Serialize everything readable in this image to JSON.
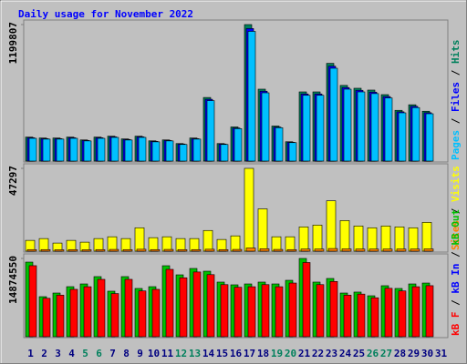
{
  "chart_data": {
    "type": "bar",
    "title": "Daily usage for November 2022",
    "categories": [
      "1",
      "2",
      "3",
      "4",
      "5",
      "6",
      "7",
      "8",
      "9",
      "10",
      "11",
      "12",
      "13",
      "14",
      "15",
      "16",
      "17",
      "18",
      "19",
      "20",
      "21",
      "22",
      "23",
      "24",
      "25",
      "26",
      "27",
      "28",
      "29",
      "30",
      "31"
    ],
    "category_colors": [
      "#000080",
      "#000080",
      "#000080",
      "#000080",
      "#00805c",
      "#00805c",
      "#000080",
      "#000080",
      "#000080",
      "#000080",
      "#000080",
      "#00805c",
      "#00805c",
      "#000080",
      "#000080",
      "#000080",
      "#000080",
      "#000080",
      "#00805c",
      "#00805c",
      "#000080",
      "#000080",
      "#000080",
      "#000080",
      "#000080",
      "#00805c",
      "#00805c",
      "#000080",
      "#000080",
      "#000080",
      "#000080"
    ],
    "legend_separator": "/",
    "panels": [
      {
        "ylim": [
          0,
          1199807
        ],
        "yticks": [
          1199807
        ],
        "series": [
          {
            "name": "Pages",
            "color": "#00c0ff",
            "values": [
              200000,
              193000,
              193000,
              200000,
              177000,
              200000,
              208000,
              185000,
              208000,
              169000,
              177000,
              146000,
              193000,
              531000,
              146000,
              285000,
              1140000,
              600000,
              293000,
              162000,
              578000,
              578000,
              816000,
              632000,
              608000,
              593000,
              555000,
              424000,
              470000,
              416000,
              null
            ]
          },
          {
            "name": "Files",
            "color": "#0000ff",
            "values": [
              205000,
              197000,
              197000,
              205000,
              181000,
              205000,
              213000,
              190000,
              213000,
              173000,
              181000,
              150000,
              197000,
              543000,
              150000,
              291000,
              1165000,
              614000,
              299000,
              165000,
              590000,
              590000,
              834000,
              646000,
              622000,
              606000,
              567000,
              433000,
              481000,
              425000,
              null
            ]
          },
          {
            "name": "Hits",
            "color": "#00805c",
            "values": [
              211000,
              203000,
              203000,
              211000,
              186000,
              211000,
              219000,
              195000,
              219000,
              178000,
              186000,
              154000,
              203000,
              559000,
              154000,
              300000,
              1199807,
              632000,
              308000,
              170000,
              608000,
              608000,
              859000,
              665000,
              640000,
              624000,
              584000,
              446000,
              495000,
              438000,
              null
            ]
          }
        ]
      },
      {
        "ylim": [
          0,
          47297
        ],
        "yticks": [
          47297
        ],
        "series": [
          {
            "name": "Sites",
            "color": "#ff8000",
            "values": [
              900,
              900,
              800,
              900,
              800,
              900,
              1000,
              900,
              1100,
              900,
              1000,
              900,
              900,
              1100,
              900,
              1000,
              1800,
              1400,
              1000,
              900,
              1200,
              1200,
              1500,
              1300,
              1200,
              1200,
              1200,
              1200,
              1200,
              1300,
              null
            ]
          },
          {
            "name": "Visits",
            "color": "#ffff00",
            "values": [
              6168,
              7196,
              4626,
              6168,
              5140,
              7196,
              8224,
              7196,
              13364,
              7710,
              8224,
              7196,
              7196,
              11822,
              6682,
              8738,
              47297,
              24158,
              8224,
              8224,
              13878,
              14906,
              28784,
              17476,
              14392,
              13364,
              14392,
              13878,
              13364,
              16448,
              null
            ]
          }
        ]
      },
      {
        "ylim": [
          0,
          14874550
        ],
        "yticks": [
          14874550
        ],
        "series": [
          {
            "name": "kB F",
            "color": "#ff0000",
            "values": [
              13500000,
              7300000,
              7900000,
              9000000,
              9500000,
              10900000,
              8200000,
              10900000,
              8700000,
              9000000,
              12800000,
              11200000,
              12300000,
              11800000,
              9900000,
              9400000,
              9500000,
              9900000,
              9500000,
              10200000,
              14100000,
              9900000,
              10500000,
              7900000,
              8100000,
              7400000,
              9200000,
              8700000,
              9500000,
              9700000,
              null
            ]
          },
          {
            "name": "kB In",
            "color": "#0000ff",
            "values": [
              0,
              0,
              0,
              0,
              0,
              0,
              0,
              0,
              0,
              0,
              0,
              0,
              0,
              0,
              0,
              0,
              0,
              0,
              0,
              0,
              0,
              0,
              0,
              0,
              0,
              0,
              0,
              0,
              0,
              0,
              null
            ]
          },
          {
            "name": "kB Out",
            "color": "#00c000",
            "values": [
              14180000,
              7610000,
              8300000,
              9510000,
              10030000,
              11420000,
              8650000,
              11420000,
              9170000,
              9510000,
              13490000,
              11760000,
              12970000,
              12450000,
              10380000,
              9860000,
              10030000,
              10380000,
              10030000,
              10720000,
              14874550,
              10380000,
              11070000,
              8300000,
              8480000,
              7780000,
              9690000,
              9170000,
              10030000,
              10200000,
              null
            ]
          }
        ]
      }
    ]
  }
}
